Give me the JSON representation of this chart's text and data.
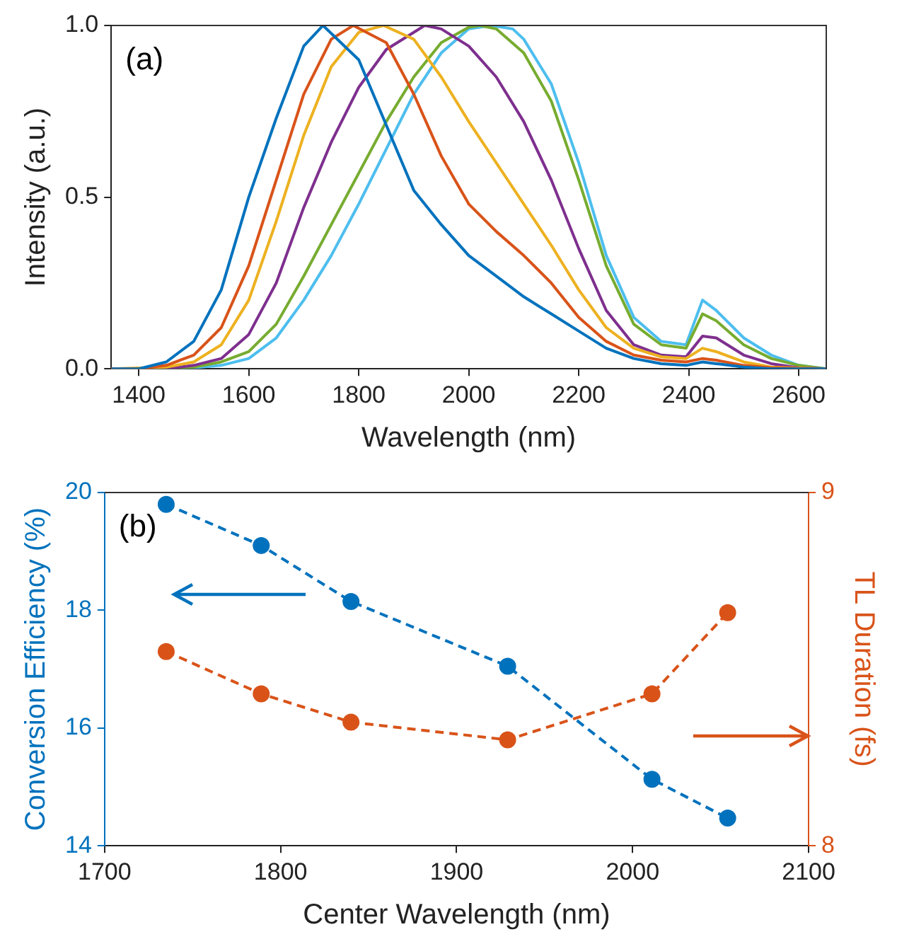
{
  "chart_data": [
    {
      "type": "line",
      "xlabel": "Wavelength (nm)",
      "ylabel": "Intensity (a.u.)",
      "annotations": [
        "(a)"
      ],
      "marker": "none",
      "line_style": "solid",
      "grid": false,
      "legend": false,
      "xlim": [
        1350,
        2650
      ],
      "xticks": [
        1400,
        1600,
        1800,
        2000,
        2200,
        2400,
        2600
      ],
      "ylim": [
        0,
        1
      ],
      "yticks": [
        {
          "value": 0,
          "label": "0.0"
        },
        {
          "value": 0.5,
          "label": "0.5"
        },
        {
          "value": 1,
          "label": "1.0"
        }
      ],
      "series": [
        {
          "color": "#0072bd",
          "x": [
            1350,
            1400,
            1450,
            1500,
            1550,
            1600,
            1650,
            1700,
            1735,
            1800,
            1850,
            1900,
            1950,
            2000,
            2050,
            2100,
            2150,
            2200,
            2250,
            2300,
            2350,
            2395,
            2425,
            2450,
            2500,
            2550,
            2650
          ],
          "values": [
            0,
            0,
            0.02,
            0.08,
            0.23,
            0.5,
            0.73,
            0.94,
            1.0,
            0.9,
            0.71,
            0.52,
            0.42,
            0.33,
            0.27,
            0.21,
            0.16,
            0.11,
            0.06,
            0.03,
            0.015,
            0.01,
            0.02,
            0.015,
            0.005,
            0,
            0
          ]
        },
        {
          "color": "#d95319",
          "x": [
            1350,
            1400,
            1450,
            1500,
            1550,
            1600,
            1650,
            1700,
            1750,
            1790,
            1850,
            1900,
            1950,
            2000,
            2050,
            2100,
            2150,
            2200,
            2250,
            2300,
            2350,
            2395,
            2425,
            2450,
            2500,
            2550,
            2650
          ],
          "values": [
            0,
            0,
            0.01,
            0.04,
            0.12,
            0.3,
            0.55,
            0.8,
            0.96,
            1.0,
            0.95,
            0.8,
            0.62,
            0.48,
            0.4,
            0.33,
            0.25,
            0.15,
            0.08,
            0.04,
            0.025,
            0.02,
            0.03,
            0.025,
            0.01,
            0.003,
            0
          ]
        },
        {
          "color": "#edb120",
          "x": [
            1350,
            1450,
            1500,
            1550,
            1600,
            1650,
            1700,
            1750,
            1800,
            1845,
            1900,
            1950,
            2000,
            2050,
            2100,
            2150,
            2200,
            2250,
            2300,
            2350,
            2395,
            2425,
            2450,
            2500,
            2550,
            2650
          ],
          "values": [
            0,
            0.005,
            0.02,
            0.07,
            0.2,
            0.43,
            0.68,
            0.88,
            0.98,
            1.0,
            0.96,
            0.85,
            0.72,
            0.6,
            0.48,
            0.36,
            0.23,
            0.12,
            0.06,
            0.035,
            0.03,
            0.06,
            0.05,
            0.02,
            0.005,
            0
          ]
        },
        {
          "color": "#7e2f8e",
          "x": [
            1350,
            1450,
            1500,
            1550,
            1600,
            1650,
            1700,
            1750,
            1800,
            1850,
            1920,
            1950,
            2000,
            2050,
            2100,
            2150,
            2200,
            2250,
            2300,
            2350,
            2395,
            2425,
            2450,
            2500,
            2550,
            2600,
            2650
          ],
          "values": [
            0,
            0,
            0.01,
            0.03,
            0.1,
            0.25,
            0.47,
            0.66,
            0.82,
            0.93,
            1.0,
            0.99,
            0.94,
            0.85,
            0.72,
            0.55,
            0.35,
            0.17,
            0.07,
            0.04,
            0.035,
            0.095,
            0.09,
            0.04,
            0.015,
            0.003,
            0
          ]
        },
        {
          "color": "#77ac30",
          "x": [
            1350,
            1450,
            1500,
            1550,
            1600,
            1650,
            1700,
            1750,
            1800,
            1850,
            1900,
            1950,
            2000,
            2020,
            2050,
            2100,
            2150,
            2200,
            2250,
            2300,
            2350,
            2395,
            2425,
            2450,
            2500,
            2550,
            2600,
            2650
          ],
          "values": [
            0,
            0,
            0.005,
            0.02,
            0.05,
            0.13,
            0.27,
            0.42,
            0.57,
            0.72,
            0.85,
            0.95,
            0.995,
            1.0,
            0.99,
            0.92,
            0.78,
            0.55,
            0.3,
            0.13,
            0.07,
            0.06,
            0.16,
            0.14,
            0.07,
            0.03,
            0.01,
            0
          ]
        },
        {
          "color": "#4dbeee",
          "x": [
            1350,
            1450,
            1500,
            1550,
            1600,
            1650,
            1700,
            1750,
            1800,
            1850,
            1900,
            1950,
            2000,
            2040,
            2080,
            2100,
            2150,
            2200,
            2250,
            2300,
            2350,
            2395,
            2425,
            2450,
            2500,
            2550,
            2600,
            2650
          ],
          "values": [
            0,
            0,
            0.003,
            0.01,
            0.03,
            0.09,
            0.2,
            0.33,
            0.48,
            0.64,
            0.8,
            0.92,
            0.99,
            1.0,
            0.99,
            0.96,
            0.83,
            0.6,
            0.33,
            0.15,
            0.08,
            0.07,
            0.2,
            0.17,
            0.09,
            0.04,
            0.01,
            0
          ]
        }
      ]
    },
    {
      "type": "line",
      "xlabel": "Center Wavelength (nm)",
      "ylabel": "Conversion Efficiency (%)",
      "y2label": "TL Duration (fs)",
      "annotations": [
        "(b)"
      ],
      "marker": "circle",
      "line_style": "dashed",
      "grid": false,
      "legend": false,
      "xlim": [
        1700,
        2100
      ],
      "xticks": [
        1700,
        1800,
        1900,
        2000,
        2100
      ],
      "ylim": [
        14,
        20
      ],
      "yticks": [
        14,
        16,
        18,
        20
      ],
      "y2lim": [
        8,
        9
      ],
      "y2ticks": [
        8,
        9
      ],
      "series": [
        {
          "color": "#0072bd",
          "x": [
            1735,
            1789,
            1840,
            1929,
            2011,
            2054
          ],
          "values": [
            19.8,
            19.1,
            18.15,
            17.05,
            15.13,
            14.47
          ]
        },
        {
          "color": "#d95319",
          "axis": "y2",
          "x": [
            1735,
            1789,
            1840,
            1929,
            2011,
            2054
          ],
          "values": [
            8.55,
            8.43,
            8.35,
            8.3,
            8.43,
            8.66
          ]
        }
      ]
    }
  ]
}
